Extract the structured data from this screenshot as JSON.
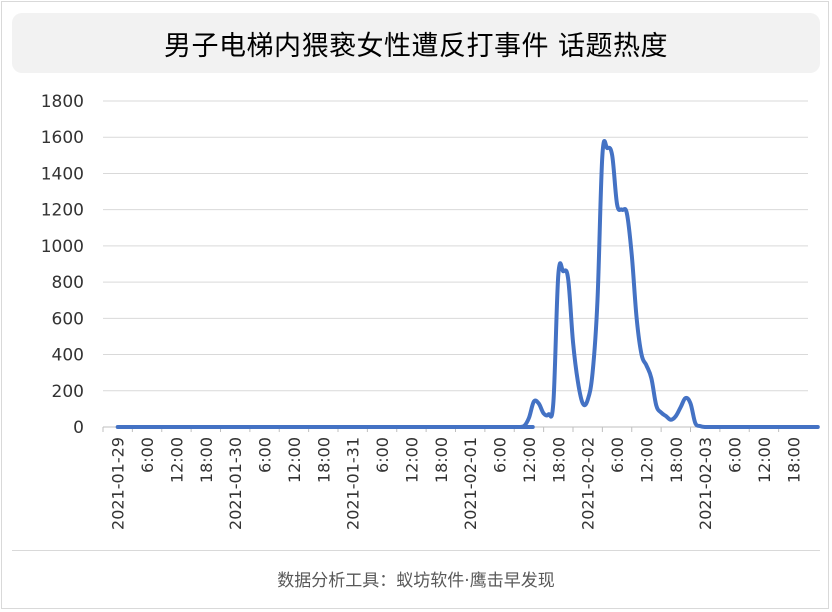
{
  "chart_data": {
    "type": "line",
    "title": "男子电梯内猥亵女性遭反打事件 话题热度",
    "footer": "数据分析工具：蚁坊软件·鹰击早发现",
    "ylim": [
      0,
      1800
    ],
    "yticks": [
      0,
      200,
      400,
      600,
      800,
      1000,
      1200,
      1400,
      1600,
      1800
    ],
    "grid": true,
    "legend": "none",
    "line_color": "#4472c4",
    "x_tick_labels": [
      "2021-01-29",
      "6:00",
      "12:00",
      "18:00",
      "2021-01-30",
      "6:00",
      "12:00",
      "18:00",
      "2021-01-31",
      "6:00",
      "12:00",
      "18:00",
      "2021-02-01",
      "6:00",
      "12:00",
      "18:00",
      "2021-02-02",
      "6:00",
      "12:00",
      "18:00",
      "2021-02-03",
      "6:00",
      "12:00",
      "18:00"
    ],
    "series": [
      {
        "x": [
          "2021-01-29 00:00",
          "2021-02-01 06:00",
          "2021-02-01 08:00",
          "2021-02-01 10:00",
          "2021-02-01 11:00",
          "2021-02-01 12:00",
          "2021-02-01 13:00",
          "2021-02-01 14:00",
          "2021-02-01 15:00",
          "2021-02-01 16:00",
          "2021-02-01 17:00",
          "2021-02-01 18:00",
          "2021-02-01 19:00",
          "2021-02-01 20:00",
          "2021-02-01 21:00",
          "2021-02-01 22:00",
          "2021-02-01 23:00",
          "2021-02-02 00:00",
          "2021-02-02 01:00",
          "2021-02-02 02:00",
          "2021-02-02 03:00",
          "2021-02-02 04:00",
          "2021-02-02 05:00",
          "2021-02-02 06:00",
          "2021-02-02 07:00",
          "2021-02-02 08:00",
          "2021-02-02 09:00",
          "2021-02-02 10:00",
          "2021-02-02 11:00",
          "2021-02-02 12:00",
          "2021-02-02 13:00",
          "2021-02-02 14:00",
          "2021-02-02 15:00",
          "2021-02-02 16:00",
          "2021-02-02 17:00",
          "2021-02-02 18:00",
          "2021-02-02 19:00",
          "2021-02-02 20:00",
          "2021-02-02 21:00",
          "2021-02-02 22:00",
          "2021-02-02 23:00",
          "2021-02-03 00:00",
          "2021-02-03 01:00",
          "2021-02-03 02:00",
          "2021-02-03 03:00",
          "2021-02-03 04:00",
          "2021-02-03 05:00",
          "2021-02-03 06:00",
          "2021-02-03 07:00",
          "2021-02-03 08:00",
          "2021-02-03 10:00",
          "2021-02-03 23:00"
        ],
        "values": [
          0,
          0,
          0,
          0,
          5,
          50,
          140,
          130,
          75,
          70,
          140,
          840,
          860,
          820,
          470,
          250,
          130,
          150,
          300,
          700,
          1500,
          1540,
          1500,
          1230,
          1200,
          1180,
          950,
          600,
          400,
          340,
          270,
          120,
          80,
          60,
          40,
          60,
          110,
          160,
          130,
          20,
          5,
          0,
          0,
          0,
          0,
          0,
          0,
          0,
          0,
          0,
          0,
          0
        ]
      }
    ]
  }
}
